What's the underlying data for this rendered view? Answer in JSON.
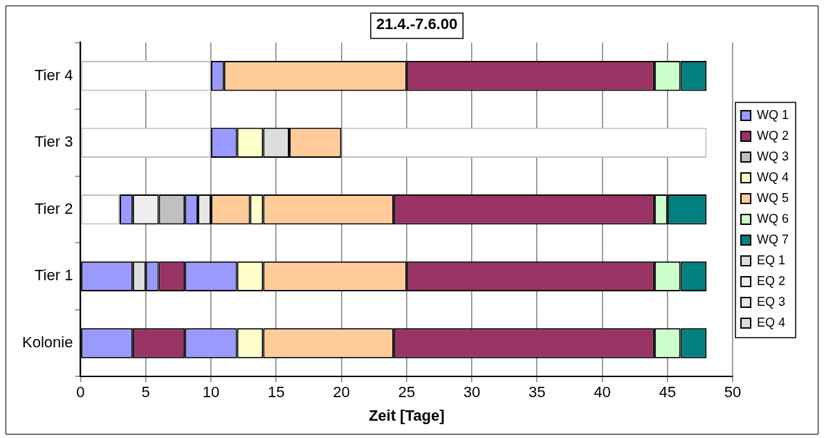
{
  "chart_data": {
    "type": "bar",
    "orientation": "horizontal",
    "title": "21.4.-7.6.00",
    "xlabel": "Zeit [Tage]",
    "categories": [
      "Tier 4",
      "Tier 3",
      "Tier 2",
      "Tier 1",
      "Kolonie"
    ],
    "xlim": [
      0,
      50
    ],
    "xticks": [
      0,
      5,
      10,
      15,
      20,
      25,
      30,
      35,
      40,
      45,
      50
    ],
    "grid": "x",
    "legend": "right",
    "series": [
      {
        "name": "WQ 1",
        "color": "#9999ff",
        "base": [
          10,
          10,
          3,
          0,
          0
        ],
        "values": [
          1,
          2,
          1,
          4,
          4
        ]
      },
      {
        "name": "WQ 2",
        "color": "#993366",
        "base": [
          25,
          null,
          24,
          6,
          4
        ],
        "values": [
          19,
          null,
          20,
          2,
          4
        ]
      },
      {
        "name": "WQ 3",
        "color": "#c0c0c0",
        "base": [
          null,
          null,
          6,
          null,
          null
        ],
        "values": [
          null,
          null,
          2,
          null,
          null
        ]
      },
      {
        "name": "WQ 4",
        "color": "#ffffcc",
        "base": [
          null,
          12,
          13,
          12,
          12
        ],
        "values": [
          null,
          2,
          1,
          2,
          2
        ]
      },
      {
        "name": "WQ 5",
        "color": "#ffcc99",
        "base": [
          11,
          16,
          10,
          14,
          14
        ],
        "values": [
          14,
          4,
          3,
          11,
          10
        ]
      },
      {
        "name": "WQ 6",
        "color": "#ccffcc",
        "base": [
          44,
          null,
          44,
          44,
          44
        ],
        "values": [
          2,
          null,
          1,
          2,
          2
        ]
      },
      {
        "name": "WQ 7",
        "color": "#008080",
        "base": [
          46,
          null,
          45,
          46,
          46
        ],
        "values": [
          2,
          null,
          3,
          2,
          2
        ]
      },
      {
        "name": "EQ 1",
        "color": "#dddddd",
        "base": [
          null,
          null,
          null,
          4,
          null
        ],
        "values": [
          null,
          null,
          null,
          1,
          null
        ]
      },
      {
        "name": "EQ 2",
        "color": "#eeeeee",
        "base": [
          null,
          null,
          4,
          null,
          null
        ],
        "values": [
          null,
          null,
          2,
          null,
          null
        ]
      },
      {
        "name": "EQ 3",
        "color": "#e6e6e6",
        "base": [
          null,
          null,
          9,
          null,
          null
        ],
        "values": [
          null,
          null,
          1,
          null,
          null
        ]
      },
      {
        "name": "EQ 4",
        "color": "#dddddd",
        "base": [
          null,
          14,
          null,
          null,
          null
        ],
        "values": [
          null,
          2,
          null,
          null,
          null
        ]
      },
      {
        "color": "#9999ff",
        "base": [
          null,
          null,
          8,
          5,
          8
        ],
        "values": [
          null,
          null,
          1,
          1,
          4
        ]
      },
      {
        "color": "#9999ff",
        "base": [
          null,
          null,
          null,
          8,
          null
        ],
        "values": [
          null,
          null,
          null,
          4,
          null
        ]
      },
      {
        "color": "#993366",
        "base": [
          null,
          null,
          null,
          25,
          24
        ],
        "values": [
          null,
          null,
          null,
          19,
          20
        ]
      },
      {
        "color": "#ffcc99",
        "base": [
          null,
          null,
          14,
          null,
          null
        ],
        "values": [
          null,
          null,
          10,
          null,
          null
        ]
      },
      {
        "color": "#ffffff",
        "base": [
          0,
          0,
          0,
          null,
          null
        ],
        "values": [
          10,
          10,
          3,
          null,
          null
        ]
      },
      {
        "color": "#ffffff",
        "base": [
          null,
          20,
          null,
          null,
          null
        ],
        "values": [
          null,
          28,
          null,
          null,
          null
        ]
      }
    ]
  }
}
